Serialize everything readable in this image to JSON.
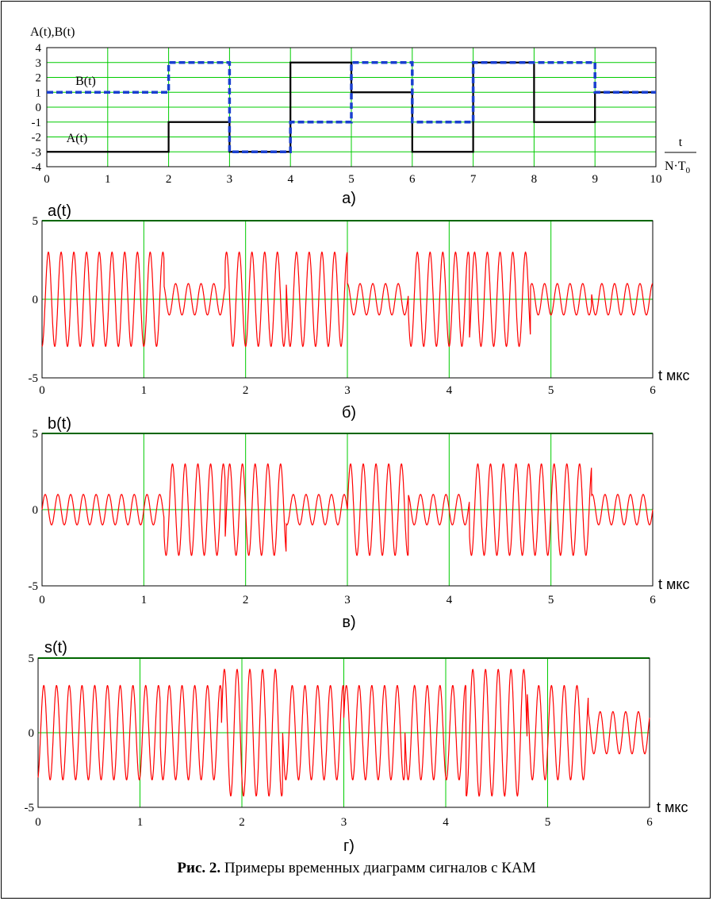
{
  "figure": {
    "caption_prefix": "Рис. 2.",
    "caption_text": " Примеры временных диаграмм сигналов с КАМ"
  },
  "colors": {
    "grid": "#00cc00",
    "frame": "#000000",
    "signal": "#ff0000",
    "A_line": "#000000",
    "B_line": "#1a3fcf"
  },
  "chart_data": [
    {
      "type": "line",
      "panel_label": "а)",
      "ylabel": "A(t),B(t)",
      "xlabel_num": "t",
      "xlabel_den": "N·T",
      "xlabel_den_sub": "0",
      "xlim": [
        0,
        10
      ],
      "ylim": [
        -4,
        4
      ],
      "xticks": [
        "0",
        "1",
        "2",
        "3",
        "4",
        "5",
        "6",
        "7",
        "8",
        "9",
        "10"
      ],
      "yticks": [
        "4",
        "3",
        "2",
        "1",
        "0",
        "-1",
        "-2",
        "-3",
        "-4"
      ],
      "grid": true,
      "series": [
        {
          "name": "A(t)",
          "style": "solid",
          "color": "#000000",
          "x": [
            0,
            1,
            2,
            3,
            4,
            5,
            6,
            7,
            8,
            9
          ],
          "values": [
            -3,
            -3,
            -1,
            -3,
            3,
            1,
            -3,
            3,
            -1,
            1
          ]
        },
        {
          "name": "B(t)",
          "style": "dashed",
          "color": "#1a3fcf",
          "x": [
            0,
            1,
            2,
            3,
            4,
            5,
            6,
            7,
            8,
            9
          ],
          "values": [
            1,
            1,
            3,
            -3,
            -1,
            3,
            -1,
            3,
            3,
            1
          ]
        }
      ]
    },
    {
      "type": "line",
      "panel_label": "б)",
      "ylabel": "a(t)",
      "xlabel": "t мкс",
      "xlim": [
        0,
        6
      ],
      "ylim": [
        -5,
        5
      ],
      "xticks": [
        "0",
        "1",
        "2",
        "3",
        "4",
        "5",
        "6"
      ],
      "yticks": [
        "5",
        "0",
        "-5"
      ],
      "grid": true,
      "carrier_cycles_per_us": 8,
      "waveform": "cos",
      "symbol_duration_us": 0.6,
      "amplitudes": [
        -3,
        -3,
        -1,
        -3,
        3,
        1,
        -3,
        3,
        -1,
        1
      ]
    },
    {
      "type": "line",
      "panel_label": "в)",
      "ylabel": "b(t)",
      "xlabel": "t мкс",
      "xlim": [
        0,
        6
      ],
      "ylim": [
        -5,
        5
      ],
      "xticks": [
        "0",
        "1",
        "2",
        "3",
        "4",
        "5",
        "6"
      ],
      "yticks": [
        "5",
        "0",
        "-5"
      ],
      "grid": true,
      "carrier_cycles_per_us": 8,
      "waveform": "sin",
      "symbol_duration_us": 0.6,
      "amplitudes": [
        1,
        1,
        3,
        -3,
        -1,
        3,
        -1,
        3,
        3,
        1
      ]
    },
    {
      "type": "line",
      "panel_label": "г)",
      "ylabel": "s(t)",
      "xlabel": "t мкс",
      "xlim": [
        0,
        6
      ],
      "ylim": [
        -5,
        5
      ],
      "xticks": [
        "0",
        "1",
        "2",
        "3",
        "4",
        "5",
        "6"
      ],
      "yticks": [
        "5",
        "0",
        "-5"
      ],
      "grid": true,
      "carrier_cycles_per_us": 8,
      "waveform": "sum",
      "symbol_duration_us": 0.6,
      "amplitudes_a": [
        -3,
        -3,
        -1,
        -3,
        3,
        1,
        -3,
        3,
        -1,
        1
      ],
      "amplitudes_b": [
        1,
        1,
        3,
        -3,
        -1,
        3,
        -1,
        3,
        3,
        1
      ]
    }
  ]
}
